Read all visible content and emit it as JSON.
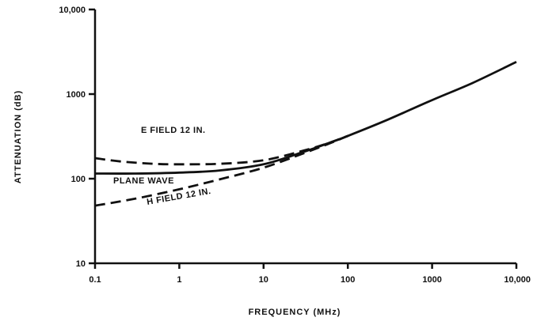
{
  "chart_data": {
    "type": "line",
    "title": "",
    "xlabel": "FREQUENCY (MHz)",
    "ylabel": "ATTENUATION (dB)",
    "x_scale": "log",
    "y_scale": "log",
    "xlim": [
      0.1,
      10000
    ],
    "ylim": [
      10,
      10000
    ],
    "x_ticks": [
      0.1,
      1,
      10,
      100,
      1000,
      10000
    ],
    "x_tick_labels": [
      "0.1",
      "1",
      "10",
      "100",
      "1000",
      "10,000"
    ],
    "y_ticks": [
      10,
      100,
      1000,
      10000
    ],
    "y_tick_labels": [
      "10",
      "100",
      "1000",
      "10,000"
    ],
    "grid": false,
    "legend": "none",
    "series": [
      {
        "name": "PLANE WAVE",
        "style": "solid",
        "x": [
          0.1,
          0.3,
          1,
          3,
          10,
          30,
          60,
          100,
          300,
          1000,
          3000,
          10000
        ],
        "y": [
          115,
          115,
          118,
          125,
          148,
          208,
          265,
          320,
          500,
          850,
          1350,
          2400
        ]
      },
      {
        "name": "E FIELD 12 IN.",
        "style": "dashed",
        "x": [
          0.1,
          0.2,
          0.5,
          1,
          3,
          10,
          30,
          60,
          100
        ],
        "y": [
          175,
          160,
          150,
          148,
          150,
          165,
          215,
          265,
          320
        ]
      },
      {
        "name": "H FIELD 12 IN.",
        "style": "dashed",
        "x": [
          0.1,
          0.3,
          1,
          3,
          10,
          30,
          60,
          100
        ],
        "y": [
          48,
          58,
          75,
          98,
          135,
          200,
          260,
          320
        ]
      }
    ]
  }
}
